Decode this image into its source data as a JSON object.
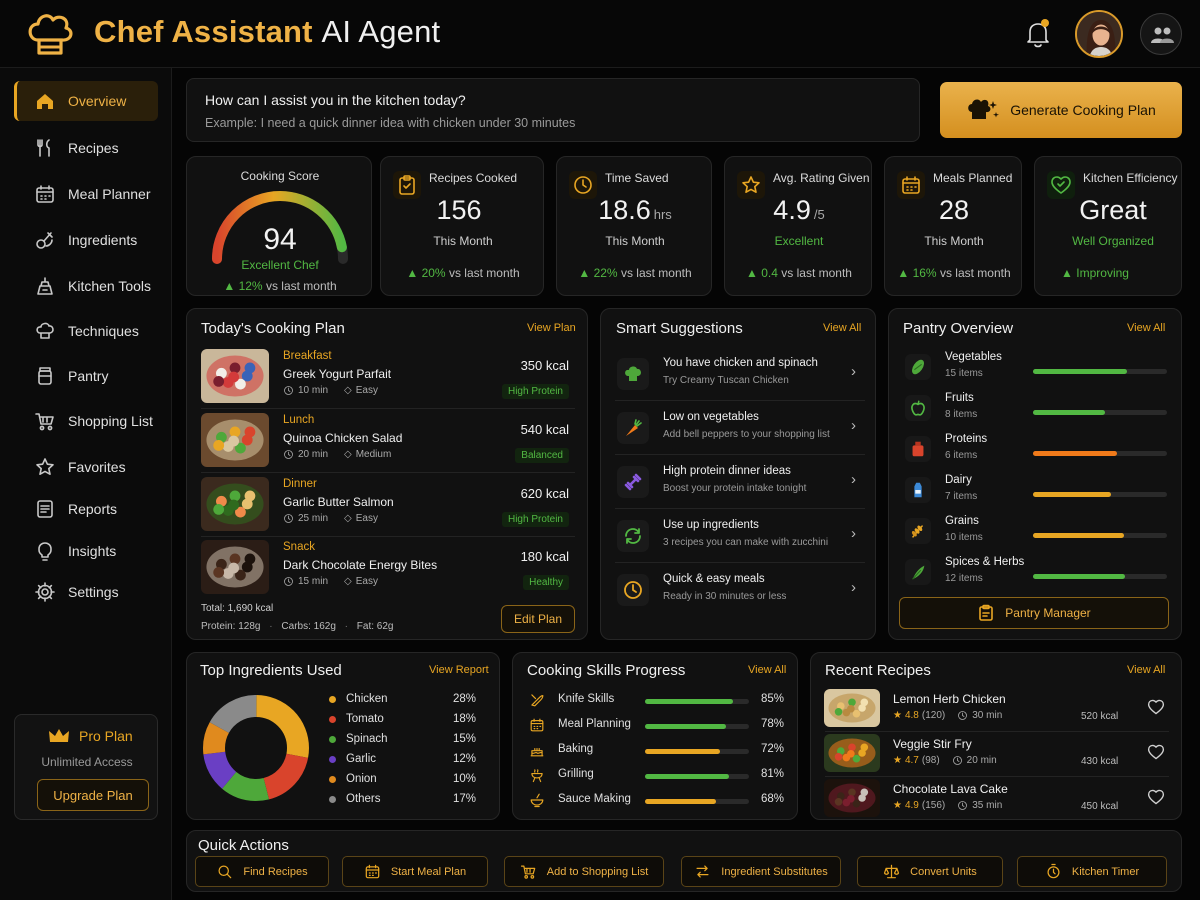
{
  "app": {
    "title_bold": "Chef Assistant",
    "title_rest": "AI Agent"
  },
  "colors": {
    "accent": "#e8a623",
    "positive": "#52b843",
    "background": "#050505"
  },
  "sidebar": {
    "items": [
      {
        "label": "Overview",
        "icon": "home-icon",
        "active": true
      },
      {
        "label": "Recipes",
        "icon": "utensils-icon"
      },
      {
        "label": "Meal Planner",
        "icon": "calendar-icon"
      },
      {
        "label": "Ingredients",
        "icon": "ingredients-icon"
      },
      {
        "label": "Kitchen Tools",
        "icon": "kitchen-tools-icon"
      },
      {
        "label": "Techniques",
        "icon": "chef-hat-icon"
      },
      {
        "label": "Pantry",
        "icon": "jar-icon"
      },
      {
        "label": "Shopping List",
        "icon": "cart-icon"
      },
      {
        "label": "Favorites",
        "icon": "star-icon"
      },
      {
        "label": "Reports",
        "icon": "report-icon"
      },
      {
        "label": "Insights",
        "icon": "lightbulb-icon"
      },
      {
        "label": "Settings",
        "icon": "gear-icon"
      }
    ],
    "pro": {
      "title": "Pro Plan",
      "subtitle": "Unlimited Access",
      "button": "Upgrade Plan"
    }
  },
  "assist": {
    "question": "How can I assist you in the kitchen today?",
    "placeholder": "Example: I need a quick dinner idea with chicken under 30 minutes",
    "generate_button": "Generate Cooking Plan"
  },
  "score": {
    "title": "Cooking Score",
    "value": "94",
    "level": 0.94,
    "label": "Excellent Chef",
    "delta": "12%",
    "delta_text": "vs last month"
  },
  "stats": [
    {
      "title": "Recipes Cooked",
      "value": "156",
      "unit": "",
      "sub": "This Month",
      "delta": "20%",
      "delta_text": "vs last month",
      "icon": "clipboard-icon"
    },
    {
      "title": "Time Saved",
      "value": "18.6",
      "unit": "hrs",
      "sub": "This Month",
      "delta": "22%",
      "delta_text": "vs last month",
      "icon": "clock-icon"
    },
    {
      "title": "Avg. Rating Given",
      "value": "4.9",
      "unit": "/5",
      "sub": "Excellent",
      "delta": "0.4",
      "delta_text": "vs last month",
      "icon": "star-icon"
    },
    {
      "title": "Meals Planned",
      "value": "28",
      "unit": "",
      "sub": "This Month",
      "delta": "16%",
      "delta_text": "vs last month",
      "icon": "calendar-icon"
    },
    {
      "title": "Kitchen Efficiency",
      "value": "Great",
      "unit": "",
      "sub": "Well Organized",
      "delta": "",
      "delta_text": "Improving",
      "icon": "heart-check-icon"
    }
  ],
  "plan": {
    "title": "Today's Cooking Plan",
    "link": "View Plan",
    "meals": [
      {
        "meal": "Breakfast",
        "name": "Greek Yogurt Parfait",
        "time": "10 min",
        "difficulty": "Easy",
        "kcal": "350 kcal",
        "tag": "High Protein"
      },
      {
        "meal": "Lunch",
        "name": "Quinoa Chicken Salad",
        "time": "20 min",
        "difficulty": "Medium",
        "kcal": "540 kcal",
        "tag": "Balanced"
      },
      {
        "meal": "Dinner",
        "name": "Garlic Butter Salmon",
        "time": "25 min",
        "difficulty": "Easy",
        "kcal": "620 kcal",
        "tag": "High Protein"
      },
      {
        "meal": "Snack",
        "name": "Dark Chocolate Energy Bites",
        "time": "15 min",
        "difficulty": "Easy",
        "kcal": "180 kcal",
        "tag": "Healthy"
      }
    ],
    "total": "Total: 1,690 kcal",
    "macros": [
      "Protein: 128g",
      "Carbs: 162g",
      "Fat: 62g"
    ],
    "edit_button": "Edit Plan"
  },
  "suggestions": {
    "title": "Smart Suggestions",
    "link": "View All",
    "items": [
      {
        "title": "You have chicken and spinach",
        "sub": "Try Creamy Tuscan Chicken",
        "icon": "chef-hat-icon"
      },
      {
        "title": "Low on vegetables",
        "sub": "Add bell peppers to your shopping list",
        "icon": "carrot-icon"
      },
      {
        "title": "High protein dinner ideas",
        "sub": "Boost your protein intake tonight",
        "icon": "dumbbell-icon"
      },
      {
        "title": "Use up ingredients",
        "sub": "3 recipes you can make with zucchini",
        "icon": "recycle-icon"
      },
      {
        "title": "Quick & easy meals",
        "sub": "Ready in 30 minutes or less",
        "icon": "clock-icon"
      }
    ]
  },
  "pantry": {
    "title": "Pantry Overview",
    "link": "View All",
    "items": [
      {
        "name": "Vegetables",
        "count": "15 items",
        "level": 0.7,
        "color": "#52b843",
        "icon": "cucumber-icon"
      },
      {
        "name": "Fruits",
        "count": "8 items",
        "level": 0.54,
        "color": "#52b843",
        "icon": "apple-icon"
      },
      {
        "name": "Proteins",
        "count": "6 items",
        "level": 0.63,
        "color": "#f07a1a",
        "icon": "meat-icon"
      },
      {
        "name": "Dairy",
        "count": "7 items",
        "level": 0.58,
        "color": "#e8a623",
        "icon": "milk-icon"
      },
      {
        "name": "Grains",
        "count": "10 items",
        "level": 0.68,
        "color": "#e8a623",
        "icon": "wheat-icon"
      },
      {
        "name": "Spices & Herbs",
        "count": "12 items",
        "level": 0.69,
        "color": "#52b843",
        "icon": "herb-icon"
      }
    ],
    "manager_button": "Pantry Manager"
  },
  "ingredients": {
    "title": "Top Ingredients Used",
    "link": "View Report",
    "chart_data": {
      "type": "pie",
      "categories": [
        "Chicken",
        "Tomato",
        "Spinach",
        "Garlic",
        "Onion",
        "Others"
      ],
      "values": [
        28,
        18,
        15,
        12,
        10,
        17
      ],
      "labels": [
        "28%",
        "18%",
        "15%",
        "12%",
        "10%",
        "17%"
      ],
      "colors": [
        "#e8a623",
        "#d9442c",
        "#4ea83a",
        "#6a3fc4",
        "#e08a1e",
        "#8a8a8a"
      ]
    }
  },
  "skills": {
    "title": "Cooking Skills Progress",
    "link": "View All",
    "items": [
      {
        "name": "Knife Skills",
        "value": 0.85,
        "label": "85%",
        "color": "#52b843",
        "icon": "knife-icon"
      },
      {
        "name": "Meal Planning",
        "value": 0.78,
        "label": "78%",
        "color": "#52b843",
        "icon": "calendar-icon"
      },
      {
        "name": "Baking",
        "value": 0.72,
        "label": "72%",
        "color": "#e8a623",
        "icon": "cake-icon"
      },
      {
        "name": "Grilling",
        "value": 0.81,
        "label": "81%",
        "color": "#52b843",
        "icon": "grill-icon"
      },
      {
        "name": "Sauce Making",
        "value": 0.68,
        "label": "68%",
        "color": "#e8a623",
        "icon": "bowl-icon"
      }
    ]
  },
  "recent": {
    "title": "Recent Recipes",
    "link": "View All",
    "items": [
      {
        "name": "Lemon Herb Chicken",
        "rating": "4.8",
        "reviews": "(120)",
        "time": "30 min",
        "kcal": "520 kcal"
      },
      {
        "name": "Veggie Stir Fry",
        "rating": "4.7",
        "reviews": "(98)",
        "time": "20 min",
        "kcal": "430 kcal"
      },
      {
        "name": "Chocolate Lava Cake",
        "rating": "4.9",
        "reviews": "(156)",
        "time": "35 min",
        "kcal": "450 kcal"
      }
    ]
  },
  "quick_actions": {
    "title": "Quick Actions",
    "items": [
      {
        "label": "Find Recipes",
        "icon": "search-icon"
      },
      {
        "label": "Start Meal Plan",
        "icon": "calendar-icon"
      },
      {
        "label": "Add to Shopping List",
        "icon": "cart-icon"
      },
      {
        "label": "Ingredient Substitutes",
        "icon": "swap-icon"
      },
      {
        "label": "Convert Units",
        "icon": "scale-icon"
      },
      {
        "label": "Kitchen Timer",
        "icon": "timer-icon"
      }
    ]
  }
}
